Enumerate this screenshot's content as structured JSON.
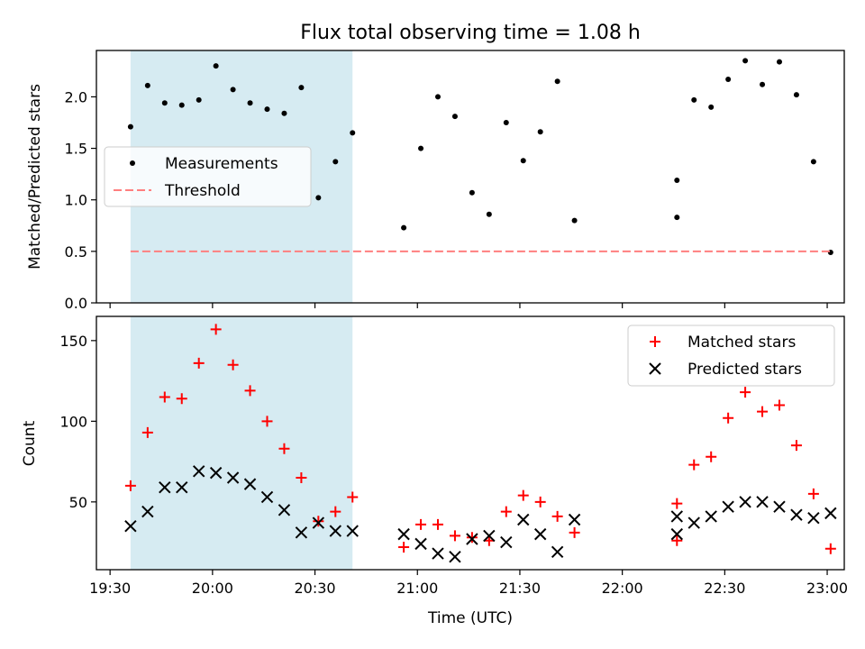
{
  "title": "Flux total observing time = 1.08 h",
  "xlabel": "Time (UTC)",
  "highlight_color": "#add8e6",
  "chart_data": [
    {
      "type": "scatter",
      "ylabel": "Matched/Predicted stars",
      "xlim": [
        "19:26",
        "23:05"
      ],
      "ylim": [
        0,
        2.45
      ],
      "yticks": [
        0.0,
        0.5,
        1.0,
        1.5,
        2.0
      ],
      "ytick_labels": [
        "0.0",
        "0.5",
        "1.0",
        "1.5",
        "2.0"
      ],
      "xticks": [
        "19:30",
        "20:00",
        "20:30",
        "21:00",
        "21:30",
        "22:00",
        "22:30",
        "23:00"
      ],
      "shaded_span": [
        "19:36",
        "20:41"
      ],
      "legend_position": "center-left",
      "series": [
        {
          "name": "Measurements",
          "marker": "dot",
          "color": "#000000",
          "x": [
            "19:36",
            "19:41",
            "19:46",
            "19:51",
            "19:56",
            "20:01",
            "20:06",
            "20:11",
            "20:16",
            "20:21",
            "20:26",
            "20:31",
            "20:36",
            "20:41",
            "20:56",
            "21:01",
            "21:06",
            "21:11",
            "21:16",
            "21:21",
            "21:26",
            "21:31",
            "21:36",
            "21:41",
            "21:46",
            "22:16",
            "22:16",
            "22:21",
            "22:26",
            "22:31",
            "22:36",
            "22:41",
            "22:46",
            "22:51",
            "22:56",
            "23:01"
          ],
          "y": [
            1.71,
            2.11,
            1.94,
            1.92,
            1.97,
            2.3,
            2.07,
            1.94,
            1.88,
            1.84,
            2.09,
            1.02,
            1.37,
            1.65,
            0.73,
            1.5,
            2.0,
            1.81,
            1.07,
            0.86,
            1.75,
            1.38,
            1.66,
            2.15,
            0.8,
            0.83,
            1.19,
            1.97,
            1.9,
            2.17,
            2.35,
            2.12,
            2.34,
            2.02,
            1.37,
            0.49
          ]
        },
        {
          "name": "Threshold",
          "marker": "dashed-line",
          "color": "#ff7f7f",
          "x": [
            "19:36",
            "23:01"
          ],
          "y": [
            0.5,
            0.5
          ]
        }
      ]
    },
    {
      "type": "scatter",
      "ylabel": "Count",
      "xlim": [
        "19:26",
        "23:05"
      ],
      "ylim": [
        8,
        165
      ],
      "yticks": [
        50,
        100,
        150
      ],
      "ytick_labels": [
        "50",
        "100",
        "150"
      ],
      "xticks": [
        "19:30",
        "20:00",
        "20:30",
        "21:00",
        "21:30",
        "22:00",
        "22:30",
        "23:00"
      ],
      "xtick_labels": [
        "19:30",
        "20:00",
        "20:30",
        "21:00",
        "21:30",
        "22:00",
        "22:30",
        "23:00"
      ],
      "shaded_span": [
        "19:36",
        "20:41"
      ],
      "legend_position": "top-right",
      "series": [
        {
          "name": "Matched stars",
          "marker": "plus",
          "color": "#ff0000",
          "x": [
            "19:36",
            "19:41",
            "19:46",
            "19:51",
            "19:56",
            "20:01",
            "20:06",
            "20:11",
            "20:16",
            "20:21",
            "20:26",
            "20:31",
            "20:36",
            "20:41",
            "20:56",
            "21:01",
            "21:06",
            "21:11",
            "21:16",
            "21:21",
            "21:26",
            "21:31",
            "21:36",
            "21:41",
            "21:46",
            "22:16",
            "22:16",
            "22:21",
            "22:26",
            "22:31",
            "22:36",
            "22:41",
            "22:46",
            "22:51",
            "22:56",
            "23:01"
          ],
          "y": [
            60,
            93,
            115,
            114,
            136,
            157,
            135,
            119,
            100,
            83,
            65,
            38,
            44,
            53,
            22,
            36,
            36,
            29,
            28,
            26,
            44,
            54,
            50,
            41,
            31,
            26,
            49,
            73,
            78,
            102,
            118,
            106,
            110,
            85,
            55,
            21
          ]
        },
        {
          "name": "Predicted stars",
          "marker": "x",
          "color": "#000000",
          "x": [
            "19:36",
            "19:41",
            "19:46",
            "19:51",
            "19:56",
            "20:01",
            "20:06",
            "20:11",
            "20:16",
            "20:21",
            "20:26",
            "20:31",
            "20:36",
            "20:41",
            "20:56",
            "21:01",
            "21:06",
            "21:11",
            "21:16",
            "21:21",
            "21:26",
            "21:31",
            "21:36",
            "21:41",
            "21:46",
            "22:16",
            "22:16",
            "22:21",
            "22:26",
            "22:31",
            "22:36",
            "22:41",
            "22:46",
            "22:51",
            "22:56",
            "23:01"
          ],
          "y": [
            35,
            44,
            59,
            59,
            69,
            68,
            65,
            61,
            53,
            45,
            31,
            37,
            32,
            32,
            30,
            24,
            18,
            16,
            27,
            29,
            25,
            39,
            30,
            19,
            39,
            30,
            41,
            37,
            41,
            47,
            50,
            50,
            47,
            42,
            40,
            43
          ]
        }
      ]
    }
  ]
}
